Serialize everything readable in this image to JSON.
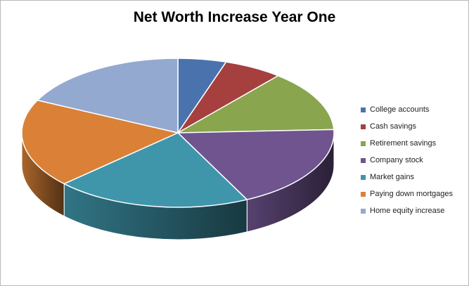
{
  "chart_data": {
    "type": "pie",
    "style": "3d-exploded-none",
    "title": "Net Worth Increase Year One",
    "legend_position": "right",
    "series": [
      {
        "name": "College accounts",
        "value": 5.0,
        "color": "#4a73ad"
      },
      {
        "name": "Cash savings",
        "value": 6.1,
        "color": "#a5403e"
      },
      {
        "name": "Retirement savings",
        "value": 13.2,
        "color": "#89a54e"
      },
      {
        "name": "Company stock",
        "value": 18.4,
        "color": "#6f548f"
      },
      {
        "name": "Market gains",
        "value": 20.3,
        "color": "#3f96ab"
      },
      {
        "name": "Paying down mortgages",
        "value": 19.2,
        "color": "#da8137"
      },
      {
        "name": "Home equity increase",
        "value": 17.8,
        "color": "#93a9cf"
      }
    ]
  }
}
